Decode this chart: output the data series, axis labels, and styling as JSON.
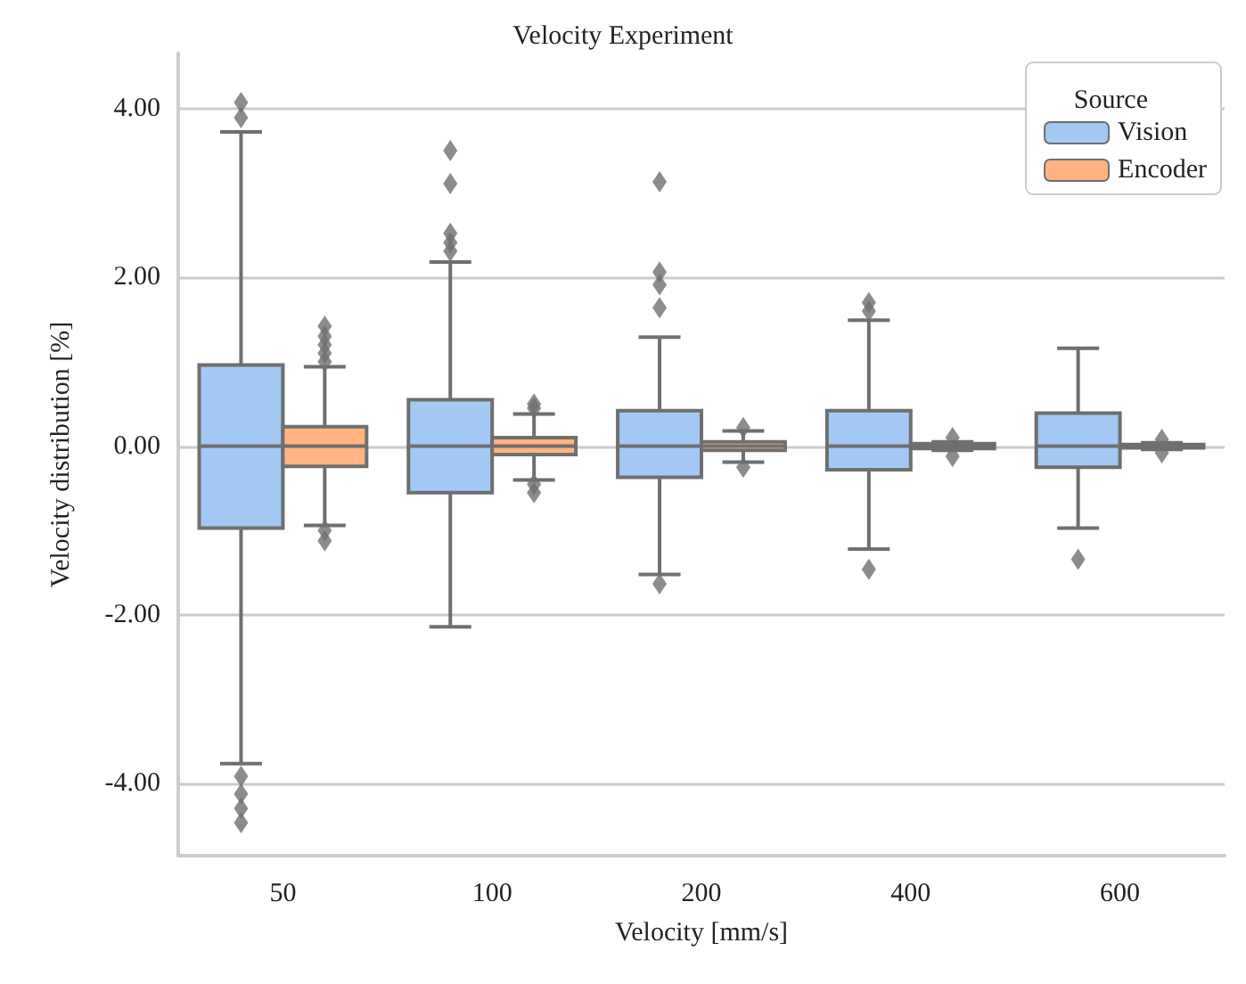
{
  "chart_data": {
    "type": "box",
    "title": "Velocity Experiment",
    "xlabel": "Velocity [mm/s]",
    "ylabel": "Velocity distribution [%]",
    "legend_title": "Source",
    "legend": "top right",
    "grid": "y",
    "categories": [
      "50",
      "100",
      "200",
      "400",
      "600"
    ],
    "ylim": [
      -4.85,
      4.65
    ],
    "yticks": [
      {
        "value": -4,
        "label": "-4.00"
      },
      {
        "value": -2,
        "label": "-2.00"
      },
      {
        "value": 0,
        "label": "0.00"
      },
      {
        "value": 2,
        "label": "2.00"
      },
      {
        "value": 4,
        "label": "4.00"
      }
    ],
    "series": [
      {
        "name": "Vision",
        "color": "#a1c9f4",
        "boxes": [
          {
            "low": -3.76,
            "q1": -0.97,
            "median": 0,
            "q3": 0.96,
            "high": 3.72,
            "outliers": [
              3.89,
              4.07,
              -3.91,
              -4.12,
              -4.29,
              -4.46
            ]
          },
          {
            "low": -2.14,
            "q1": -0.55,
            "median": 0,
            "q3": 0.55,
            "high": 2.18,
            "outliers": [
              2.31,
              2.41,
              2.52,
              3.11,
              3.5
            ]
          },
          {
            "low": -1.52,
            "q1": -0.37,
            "median": 0,
            "q3": 0.42,
            "high": 1.29,
            "outliers": [
              1.64,
              1.91,
              2.06,
              3.13,
              -1.63
            ]
          },
          {
            "low": -1.22,
            "q1": -0.28,
            "median": 0,
            "q3": 0.42,
            "high": 1.49,
            "outliers": [
              1.6,
              1.7,
              -1.46
            ]
          },
          {
            "low": -0.97,
            "q1": -0.25,
            "median": 0,
            "q3": 0.39,
            "high": 1.16,
            "outliers": [
              -1.34
            ]
          }
        ]
      },
      {
        "name": "Encoder",
        "color": "#ffb482",
        "boxes": [
          {
            "low": -0.94,
            "q1": -0.24,
            "median": 0,
            "q3": 0.23,
            "high": 0.94,
            "outliers": [
              1.0,
              1.1,
              1.2,
              1.3,
              1.42,
              -1.0,
              -1.12
            ]
          },
          {
            "low": -0.4,
            "q1": -0.1,
            "median": 0,
            "q3": 0.1,
            "high": 0.38,
            "outliers": [
              0.45,
              0.5,
              -0.45,
              -0.55
            ]
          },
          {
            "low": -0.19,
            "q1": -0.05,
            "median": 0,
            "q3": 0.05,
            "high": 0.18,
            "outliers": [
              0.22,
              -0.25
            ]
          },
          {
            "low": -0.05,
            "q1": -0.03,
            "median": 0,
            "q3": 0.03,
            "high": 0.05,
            "outliers": [
              0.1,
              -0.12
            ]
          },
          {
            "low": -0.04,
            "q1": -0.02,
            "median": 0,
            "q3": 0.02,
            "high": 0.04,
            "outliers": [
              0.08,
              -0.08
            ]
          }
        ]
      }
    ]
  }
}
